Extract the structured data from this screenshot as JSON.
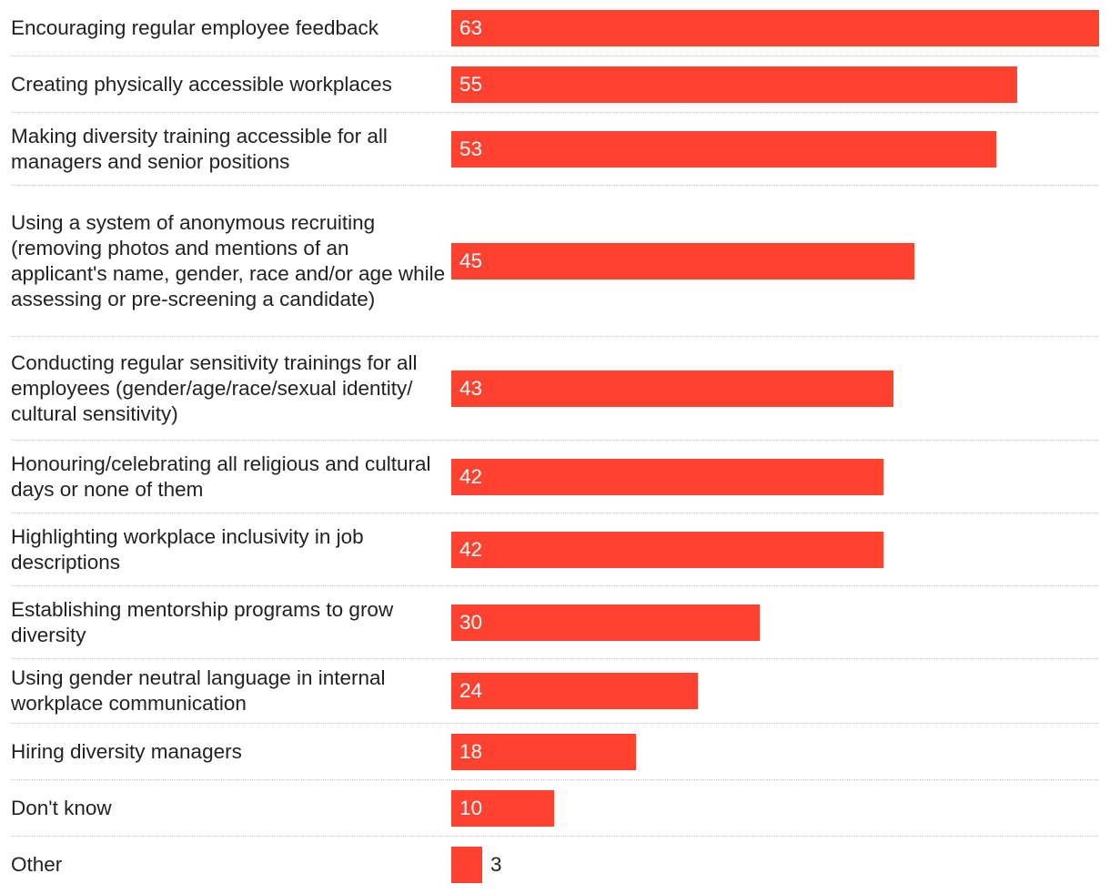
{
  "chart_data": {
    "type": "bar",
    "orientation": "horizontal",
    "categories": [
      "Encouraging regular employee feedback",
      "Creating physically accessible workplaces",
      "Making diversity training accessible for all managers and senior positions",
      "Using a system of anonymous recruiting (removing photos and mentions of an applicant's name, gender, race and/or age while assessing or pre-screening a candidate)",
      "Conducting regular sensitivity trainings for all employees (gender/age/race/sexual identity/ cultural sensitivity)",
      "Honouring/celebrating all religious and cultural days or none of them",
      "Highlighting workplace inclusivity in job descriptions",
      "Establishing mentorship programs to grow diversity",
      "Using gender neutral language in internal workplace communication",
      "Hiring diversity managers",
      "Don't know",
      "Other"
    ],
    "values": [
      63,
      55,
      53,
      45,
      43,
      42,
      42,
      30,
      24,
      18,
      10,
      3
    ],
    "xlim": [
      0,
      63
    ],
    "title": "",
    "xlabel": "",
    "ylabel": "",
    "grid": false,
    "bar_color": "#ff4130",
    "value_label_inside_color": "#ffffff",
    "value_label_outside_color": "#222222",
    "divider_color": "#c8c8c8"
  }
}
